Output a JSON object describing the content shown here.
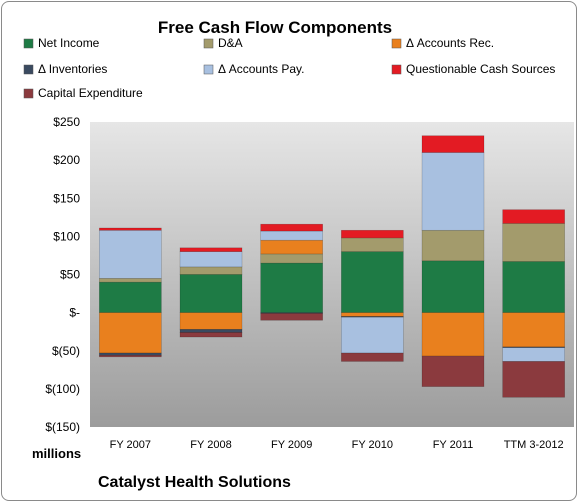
{
  "chart_data": {
    "type": "bar",
    "stacked": true,
    "title": "Free Cash Flow Components",
    "ylabel": "millions",
    "footer": "Catalyst Health Solutions",
    "categories": [
      "FY 2007",
      "FY 2008",
      "FY 2009",
      "FY 2010",
      "FY 2011",
      "TTM 3-2012"
    ],
    "ylim": [
      -150,
      250
    ],
    "yticks": [
      -150,
      -100,
      -50,
      0,
      50,
      100,
      150,
      200,
      250
    ],
    "ytick_labels": [
      "$(150)",
      "$(100)",
      "$(50)",
      "$-",
      "$50",
      "$100",
      "$150",
      "$200",
      "$250"
    ],
    "grid": false,
    "legend_position": "top",
    "series": [
      {
        "name": "Net Income",
        "color": "#1e7b45",
        "values": [
          40,
          50,
          65,
          80,
          68,
          67
        ]
      },
      {
        "name": "D&A",
        "color": "#a39b6c",
        "values": [
          5,
          10,
          12,
          18,
          40,
          50
        ]
      },
      {
        "name": "Δ Accounts Rec.",
        "color": "#e9801e",
        "values": [
          -53,
          -22,
          18,
          -5,
          -57,
          -45
        ]
      },
      {
        "name": "Δ Inventories",
        "color": "#3a4a60",
        "values": [
          -3,
          -4,
          -1,
          -1,
          0,
          -1
        ]
      },
      {
        "name": "Δ Accounts Pay.",
        "color": "#a8c0e0",
        "values": [
          63,
          20,
          12,
          -47,
          102,
          -18
        ]
      },
      {
        "name": "Questionable Cash Sources",
        "color": "#e31b23",
        "values": [
          3,
          5,
          9,
          10,
          22,
          18
        ]
      },
      {
        "name": "Capital Expenditure",
        "color": "#8b3a3e",
        "values": [
          -2,
          -6,
          -9,
          -11,
          -40,
          -47
        ]
      }
    ]
  }
}
